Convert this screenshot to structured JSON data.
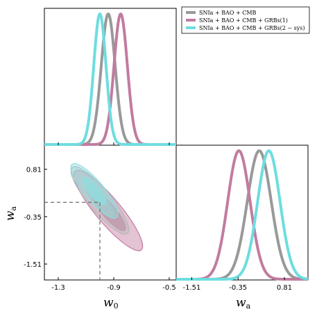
{
  "chart_data": {
    "type": "corner-plot",
    "parameters": [
      "w0",
      "wa"
    ],
    "legend": {
      "placement": "top-right",
      "entries": [
        {
          "label": "SNIa + BAO + CMB",
          "color": "#999999"
        },
        {
          "label": "SNIa + BAO + CMB + GRBs(1)",
          "color": "#c27ba0"
        },
        {
          "label": "SNIa + BAO + CMB + GRBs(2 − sys)",
          "color": "#6ddde0"
        }
      ]
    },
    "axes": {
      "w0": {
        "label_main": "w",
        "label_sub": "0",
        "range": [
          -1.4,
          -0.45
        ],
        "ticks": [
          -1.3,
          -0.9,
          -0.5
        ],
        "tick_labels": [
          "-1.3",
          "-0.9",
          "-0.5"
        ]
      },
      "wa": {
        "label_main": "w",
        "label_sub": "a",
        "range": [
          -1.9,
          1.4
        ],
        "ticks": [
          -1.51,
          -0.35,
          0.81
        ],
        "tick_labels": [
          "-1.51",
          "-0.35",
          "0.81"
        ]
      }
    },
    "series": [
      {
        "name": "SNIa + BAO + CMB",
        "color": "#999999",
        "w0_mean": -0.94,
        "w0_sigma": 0.05,
        "wa_mean": 0.18,
        "wa_sigma": 0.3
      },
      {
        "name": "SNIa + BAO + CMB + GRBs(1)",
        "color": "#c27ba0",
        "w0_mean": -0.85,
        "w0_sigma": 0.048,
        "wa_mean": -0.33,
        "wa_sigma": 0.28
      },
      {
        "name": "SNIa + BAO + CMB + GRBs(2 − sys)",
        "color": "#6ddde0",
        "w0_mean": -1.0,
        "w0_sigma": 0.044,
        "wa_mean": 0.42,
        "wa_sigma": 0.28
      }
    ],
    "contours": [
      {
        "series": "SNIa + BAO + CMB + GRBs(1)",
        "cx": -0.94,
        "cy": -0.2,
        "radii_sigma": [
          2.1,
          0.95
        ],
        "color": "#c27ba0"
      },
      {
        "series": "SNIa + BAO + CMB",
        "cx": -1.0,
        "cy": 0.05,
        "radii_sigma": [
          2.3,
          1.1
        ],
        "color": "#b8b8b8"
      },
      {
        "series": "SNIa + BAO + CMB + GRBs(2 − sys)",
        "cx": -1.04,
        "cy": 0.28,
        "radii_sigma": [
          2.0,
          0.95
        ],
        "color": "#8fdde0"
      }
    ],
    "fiducial": {
      "w0": -1.0,
      "wa": 0.0
    }
  }
}
